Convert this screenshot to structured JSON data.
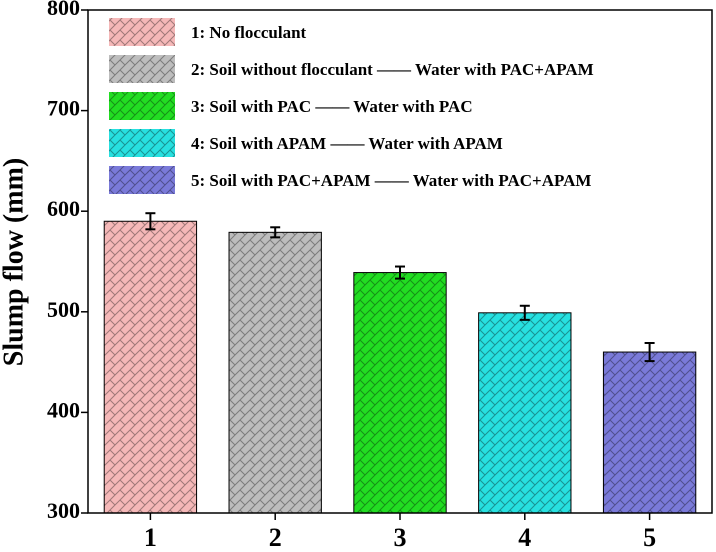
{
  "chart_data": {
    "type": "bar",
    "y_label": "Slump flow (mm)",
    "categories": [
      "1",
      "2",
      "3",
      "4",
      "5"
    ],
    "values": [
      590,
      579,
      539,
      499,
      460
    ],
    "errors": [
      8,
      5,
      6,
      7,
      9
    ],
    "colors": [
      "#f5b8b8",
      "#bdbdbd",
      "#22dd22",
      "#27e0e0",
      "#7a7ad9"
    ],
    "legend": [
      "1: No flocculant",
      "2: Soil without flocculant —— Water with PAC+APAM",
      "3: Soil with PAC —— Water with PAC",
      "4: Soil with APAM —— Water with APAM",
      "5: Soil with PAC+APAM —— Water with PAC+APAM"
    ],
    "ylim": [
      300,
      800
    ],
    "yticks": [
      300,
      400,
      500,
      600,
      700,
      800
    ]
  }
}
